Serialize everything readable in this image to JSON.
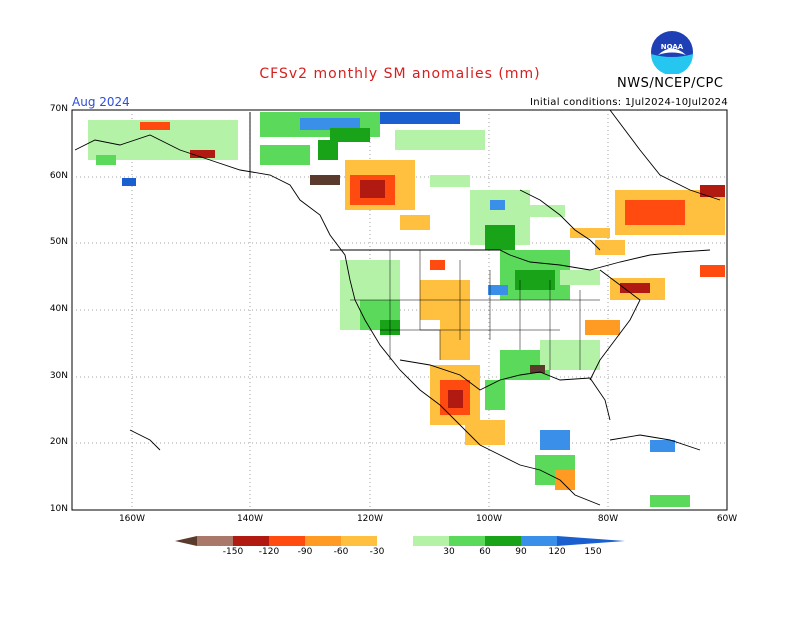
{
  "title": "CFSv2 monthly SM anomalies (mm)",
  "org": "NWS/NCEP/CPC",
  "valid_label": "Aug 2024",
  "initial_conditions": "Initial conditions: 1Jul2024-10Jul2024",
  "logo_text": "NOAA",
  "colors": {
    "title": "#d62020",
    "valid": "#2e4fd6",
    "frame": "#000000"
  },
  "y_axis_labels": [
    "70N",
    "60N",
    "50N",
    "40N",
    "30N",
    "20N",
    "10N"
  ],
  "x_axis_labels": [
    "160W",
    "140W",
    "120W",
    "100W",
    "80W",
    "60W"
  ],
  "colorbar": {
    "ticks": [
      "-150",
      "-120",
      "-90",
      "-60",
      "-30",
      "30",
      "60",
      "90",
      "120",
      "150"
    ],
    "colors": [
      "#5a3a2c",
      "#a9786a",
      "#b01a10",
      "#ff4a10",
      "#ff9a22",
      "#ffc040",
      "#ffffff",
      "#b4f2a8",
      "#5ad95a",
      "#18a318",
      "#3a90e8",
      "#1a5fcf"
    ]
  }
}
